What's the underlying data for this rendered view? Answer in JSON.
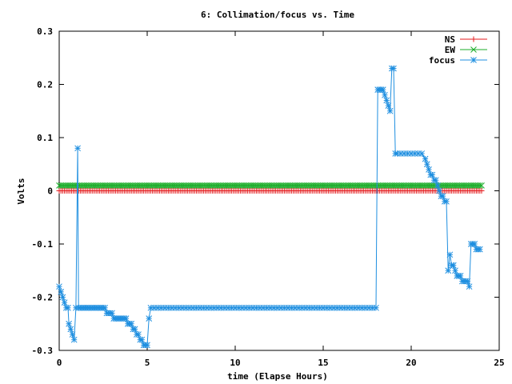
{
  "chart_data": {
    "type": "line",
    "title": "6: Collimation/focus vs. Time",
    "xlabel": "time (Elapse Hours)",
    "ylabel": "Volts",
    "xlim": [
      0,
      25
    ],
    "ylim": [
      -0.3,
      0.3
    ],
    "xticks": [
      0,
      5,
      10,
      15,
      20,
      25
    ],
    "yticks": [
      -0.3,
      -0.2,
      -0.1,
      0,
      0.1,
      0.2,
      0.3
    ],
    "xtick_labels": [
      "0",
      "5",
      "10",
      "15",
      "20",
      "25"
    ],
    "ytick_labels": [
      "-0.3",
      "-0.2",
      "-0.1",
      "0",
      "0.1",
      "0.2",
      "0.3"
    ],
    "grid": false,
    "legend_position": "top-right",
    "series": [
      {
        "name": "NS",
        "color": "#e41a1c",
        "marker": "plus",
        "segments": [
          {
            "x_start": 0,
            "x_end": 24,
            "step": 0.1,
            "y": 0.0
          }
        ]
      },
      {
        "name": "EW",
        "color": "#1bad2a",
        "marker": "cross",
        "segments": [
          {
            "x_start": 0,
            "x_end": 24,
            "step": 0.1,
            "y": 0.01
          }
        ]
      },
      {
        "name": "focus",
        "color": "#1f8fe0",
        "marker": "star",
        "points": [
          [
            0.0,
            -0.18
          ],
          [
            0.1,
            -0.19
          ],
          [
            0.2,
            -0.2
          ],
          [
            0.3,
            -0.21
          ],
          [
            0.4,
            -0.22
          ],
          [
            0.5,
            -0.22
          ],
          [
            0.55,
            -0.25
          ],
          [
            0.65,
            -0.26
          ],
          [
            0.75,
            -0.27
          ],
          [
            0.85,
            -0.28
          ],
          [
            0.95,
            -0.22
          ],
          [
            1.05,
            0.08
          ],
          [
            1.1,
            -0.22
          ],
          [
            1.2,
            -0.22
          ],
          [
            1.3,
            -0.22
          ],
          [
            1.4,
            -0.22
          ],
          [
            1.5,
            -0.22
          ],
          [
            1.6,
            -0.22
          ],
          [
            1.7,
            -0.22
          ],
          [
            1.8,
            -0.22
          ],
          [
            1.9,
            -0.22
          ],
          [
            2.0,
            -0.22
          ],
          [
            2.1,
            -0.22
          ],
          [
            2.2,
            -0.22
          ],
          [
            2.3,
            -0.22
          ],
          [
            2.4,
            -0.22
          ],
          [
            2.5,
            -0.22
          ],
          [
            2.6,
            -0.22
          ],
          [
            2.7,
            -0.23
          ],
          [
            2.8,
            -0.23
          ],
          [
            2.9,
            -0.23
          ],
          [
            3.0,
            -0.23
          ],
          [
            3.1,
            -0.24
          ],
          [
            3.2,
            -0.24
          ],
          [
            3.3,
            -0.24
          ],
          [
            3.4,
            -0.24
          ],
          [
            3.5,
            -0.24
          ],
          [
            3.6,
            -0.24
          ],
          [
            3.7,
            -0.24
          ],
          [
            3.8,
            -0.24
          ],
          [
            3.9,
            -0.25
          ],
          [
            4.0,
            -0.25
          ],
          [
            4.1,
            -0.25
          ],
          [
            4.2,
            -0.26
          ],
          [
            4.3,
            -0.26
          ],
          [
            4.4,
            -0.27
          ],
          [
            4.5,
            -0.27
          ],
          [
            4.6,
            -0.28
          ],
          [
            4.7,
            -0.28
          ],
          [
            4.8,
            -0.29
          ],
          [
            4.9,
            -0.29
          ],
          [
            5.0,
            -0.29
          ],
          [
            5.1,
            -0.24
          ],
          [
            5.2,
            -0.22
          ],
          [
            5.4,
            -0.22
          ],
          [
            5.6,
            -0.22
          ],
          [
            5.8,
            -0.22
          ],
          [
            6.0,
            -0.22
          ],
          [
            6.2,
            -0.22
          ],
          [
            6.4,
            -0.22
          ],
          [
            6.6,
            -0.22
          ],
          [
            6.8,
            -0.22
          ],
          [
            7.0,
            -0.22
          ],
          [
            7.2,
            -0.22
          ],
          [
            7.4,
            -0.22
          ],
          [
            7.6,
            -0.22
          ],
          [
            7.8,
            -0.22
          ],
          [
            8.0,
            -0.22
          ],
          [
            8.2,
            -0.22
          ],
          [
            8.4,
            -0.22
          ],
          [
            8.6,
            -0.22
          ],
          [
            8.8,
            -0.22
          ],
          [
            9.0,
            -0.22
          ],
          [
            9.2,
            -0.22
          ],
          [
            9.4,
            -0.22
          ],
          [
            9.6,
            -0.22
          ],
          [
            9.8,
            -0.22
          ],
          [
            10.0,
            -0.22
          ],
          [
            10.2,
            -0.22
          ],
          [
            10.4,
            -0.22
          ],
          [
            10.6,
            -0.22
          ],
          [
            10.8,
            -0.22
          ],
          [
            11.0,
            -0.22
          ],
          [
            11.2,
            -0.22
          ],
          [
            11.4,
            -0.22
          ],
          [
            11.6,
            -0.22
          ],
          [
            11.8,
            -0.22
          ],
          [
            12.0,
            -0.22
          ],
          [
            12.2,
            -0.22
          ],
          [
            12.4,
            -0.22
          ],
          [
            12.6,
            -0.22
          ],
          [
            12.8,
            -0.22
          ],
          [
            13.0,
            -0.22
          ],
          [
            13.2,
            -0.22
          ],
          [
            13.4,
            -0.22
          ],
          [
            13.6,
            -0.22
          ],
          [
            13.8,
            -0.22
          ],
          [
            14.0,
            -0.22
          ],
          [
            14.2,
            -0.22
          ],
          [
            14.4,
            -0.22
          ],
          [
            14.6,
            -0.22
          ],
          [
            14.8,
            -0.22
          ],
          [
            15.0,
            -0.22
          ],
          [
            15.2,
            -0.22
          ],
          [
            15.4,
            -0.22
          ],
          [
            15.6,
            -0.22
          ],
          [
            15.8,
            -0.22
          ],
          [
            16.0,
            -0.22
          ],
          [
            16.2,
            -0.22
          ],
          [
            16.4,
            -0.22
          ],
          [
            16.6,
            -0.22
          ],
          [
            16.8,
            -0.22
          ],
          [
            17.0,
            -0.22
          ],
          [
            17.2,
            -0.22
          ],
          [
            17.4,
            -0.22
          ],
          [
            17.6,
            -0.22
          ],
          [
            17.8,
            -0.22
          ],
          [
            18.0,
            -0.22
          ],
          [
            18.1,
            0.19
          ],
          [
            18.2,
            0.19
          ],
          [
            18.3,
            0.19
          ],
          [
            18.4,
            0.19
          ],
          [
            18.5,
            0.18
          ],
          [
            18.6,
            0.17
          ],
          [
            18.7,
            0.16
          ],
          [
            18.8,
            0.15
          ],
          [
            18.9,
            0.23
          ],
          [
            19.0,
            0.23
          ],
          [
            19.1,
            0.07
          ],
          [
            19.2,
            0.07
          ],
          [
            19.4,
            0.07
          ],
          [
            19.6,
            0.07
          ],
          [
            19.8,
            0.07
          ],
          [
            20.0,
            0.07
          ],
          [
            20.2,
            0.07
          ],
          [
            20.4,
            0.07
          ],
          [
            20.6,
            0.07
          ],
          [
            20.8,
            0.06
          ],
          [
            20.9,
            0.05
          ],
          [
            21.0,
            0.04
          ],
          [
            21.1,
            0.03
          ],
          [
            21.2,
            0.03
          ],
          [
            21.3,
            0.02
          ],
          [
            21.4,
            0.02
          ],
          [
            21.5,
            0.01
          ],
          [
            21.6,
            0.0
          ],
          [
            21.7,
            -0.01
          ],
          [
            21.8,
            -0.01
          ],
          [
            21.9,
            -0.02
          ],
          [
            22.0,
            -0.02
          ],
          [
            22.1,
            -0.15
          ],
          [
            22.2,
            -0.12
          ],
          [
            22.3,
            -0.14
          ],
          [
            22.4,
            -0.14
          ],
          [
            22.5,
            -0.15
          ],
          [
            22.6,
            -0.16
          ],
          [
            22.7,
            -0.16
          ],
          [
            22.8,
            -0.16
          ],
          [
            22.9,
            -0.17
          ],
          [
            23.0,
            -0.17
          ],
          [
            23.1,
            -0.17
          ],
          [
            23.2,
            -0.17
          ],
          [
            23.3,
            -0.18
          ],
          [
            23.4,
            -0.1
          ],
          [
            23.5,
            -0.1
          ],
          [
            23.6,
            -0.1
          ],
          [
            23.7,
            -0.11
          ],
          [
            23.8,
            -0.11
          ],
          [
            23.9,
            -0.11
          ]
        ]
      }
    ]
  }
}
